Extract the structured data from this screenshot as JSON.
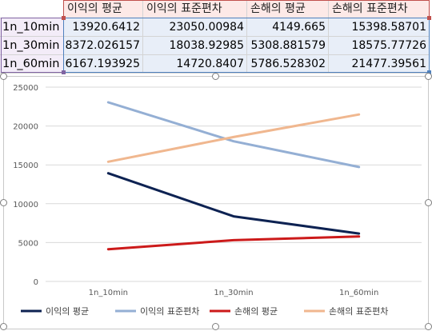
{
  "table": {
    "headers": [
      "이익의 평균",
      "이익의 표준편차",
      "손해의 평균",
      "손해의 표준편차"
    ],
    "rows": [
      {
        "label": "1n_10min",
        "values": [
          "13920.6412",
          "23050.00984",
          "4149.665",
          "15398.58701"
        ]
      },
      {
        "label": "1n_30min",
        "values": [
          "8372.026157",
          "18038.92985",
          "5308.881579",
          "18575.77726"
        ]
      },
      {
        "label": "1n_60min",
        "values": [
          "6167.193925",
          "14720.8407",
          "5786.528302",
          "21477.39561"
        ]
      }
    ]
  },
  "chart_data": {
    "type": "line",
    "categories": [
      "1n_10min",
      "1n_30min",
      "1n_60min"
    ],
    "series": [
      {
        "name": "이익의 평균",
        "color": "#0d2252",
        "values": [
          13920.6412,
          8372.026157,
          6167.193925
        ]
      },
      {
        "name": "이익의 표준편차",
        "color": "#94afd4",
        "values": [
          23050.00984,
          18038.92985,
          14720.8407
        ]
      },
      {
        "name": "손해의 평균",
        "color": "#cc1a1a",
        "values": [
          4149.665,
          5308.881579,
          5786.528302
        ]
      },
      {
        "name": "손해의 표준편차",
        "color": "#f0b78f",
        "values": [
          15398.58701,
          18575.77726,
          21477.39561
        ]
      }
    ],
    "yticks": [
      "0",
      "5000",
      "10000",
      "15000",
      "20000",
      "25000"
    ],
    "ylim": [
      0,
      25000
    ],
    "grid": true,
    "legend": "bottom"
  }
}
